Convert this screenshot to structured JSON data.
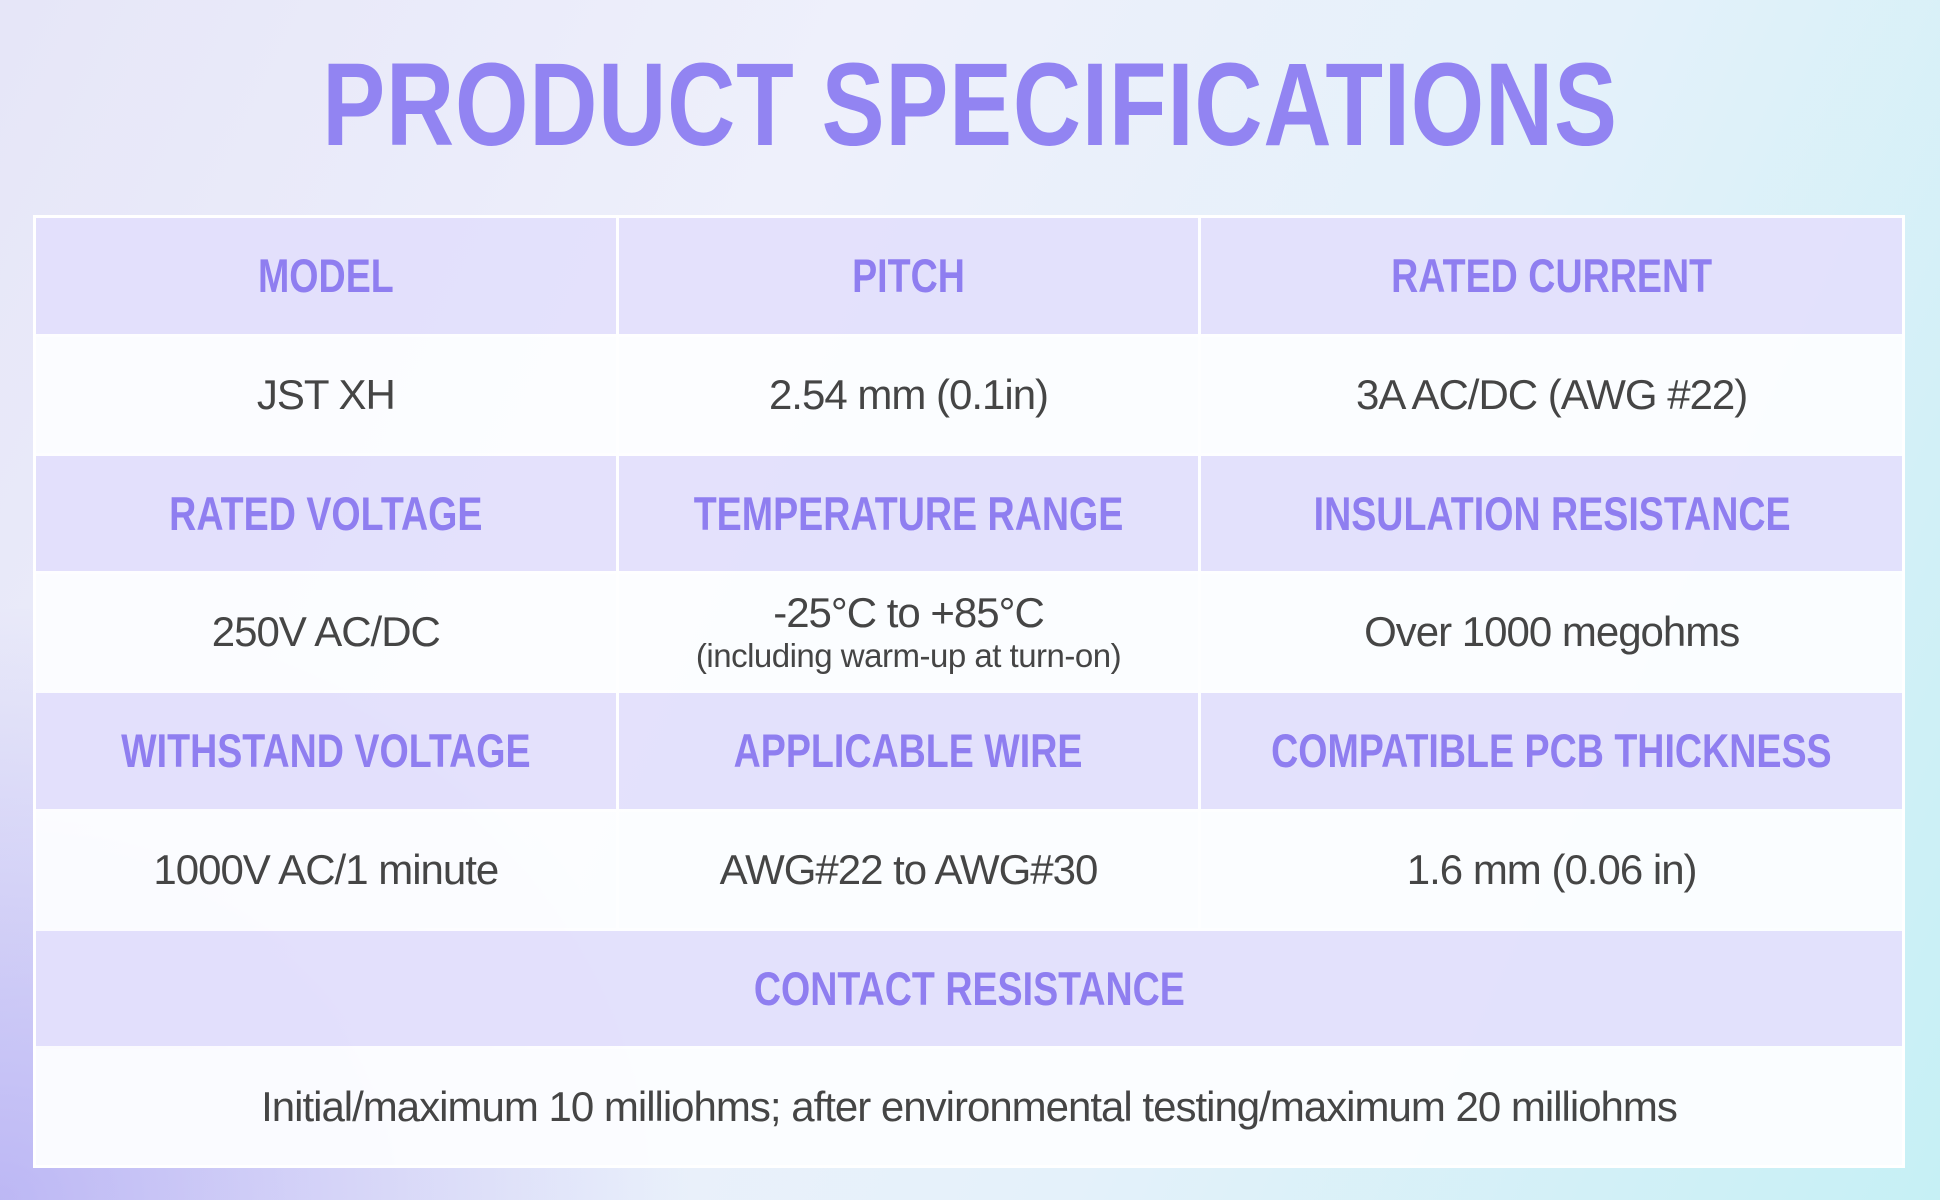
{
  "title": "PRODUCT SPECIFICATIONS",
  "table": {
    "sections": [
      {
        "cells": [
          {
            "header": "MODEL",
            "value": "JST XH"
          },
          {
            "header": "PITCH",
            "value": "2.54 mm (0.1in)"
          },
          {
            "header": "RATED CURRENT",
            "value": "3A AC/DC (AWG #22)"
          }
        ]
      },
      {
        "cells": [
          {
            "header": "RATED VOLTAGE",
            "value": "250V AC/DC"
          },
          {
            "header": "TEMPERATURE RANGE",
            "value": "-25°C to +85°C",
            "note": "(including warm-up at turn-on)"
          },
          {
            "header": "INSULATION RESISTANCE",
            "value": "Over 1000 megohms"
          }
        ]
      },
      {
        "cells": [
          {
            "header": "WITHSTAND VOLTAGE",
            "value": "1000V AC/1 minute"
          },
          {
            "header": "APPLICABLE WIRE",
            "value": "AWG#22 to AWG#30"
          },
          {
            "header": "COMPATIBLE PCB THICKNESS",
            "value": "1.6 mm (0.06 in)"
          }
        ]
      },
      {
        "cells": [
          {
            "header": "CONTACT RESISTANCE",
            "value": "Initial/maximum 10 milliohms; after environmental testing/maximum 20 milliohms"
          }
        ]
      }
    ]
  }
}
